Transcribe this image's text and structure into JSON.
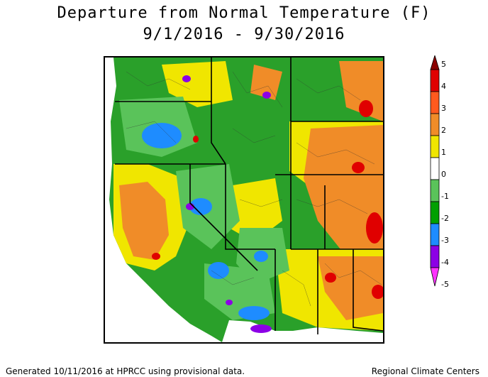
{
  "title": "Departure from Normal Temperature (F)",
  "date_range": "9/1/2016 - 9/30/2016",
  "legend": {
    "labels": [
      "5",
      "4",
      "3",
      "2",
      "1",
      "0",
      "-1",
      "-2",
      "-3",
      "-4",
      "-5"
    ],
    "colors": [
      "#8b0000",
      "#e00000",
      "#ff5a1e",
      "#f08c28",
      "#f0e600",
      "#ffffff",
      "#5ac35a",
      "#00a000",
      "#1e8cff",
      "#8c00e6",
      "#ff32ff"
    ]
  },
  "map_colors": {
    "water": "#ffffff",
    "green": "#5ac35a",
    "dark_green": "#2aa02a",
    "yellow": "#f0e600",
    "orange": "#f08c28",
    "red": "#e00000",
    "dark_red": "#8b0000",
    "blue": "#1e8cff",
    "purple": "#8c00e6"
  },
  "footer": {
    "left": "Generated 10/11/2016 at HPRCC using provisional data.",
    "right": "Regional Climate Centers"
  }
}
